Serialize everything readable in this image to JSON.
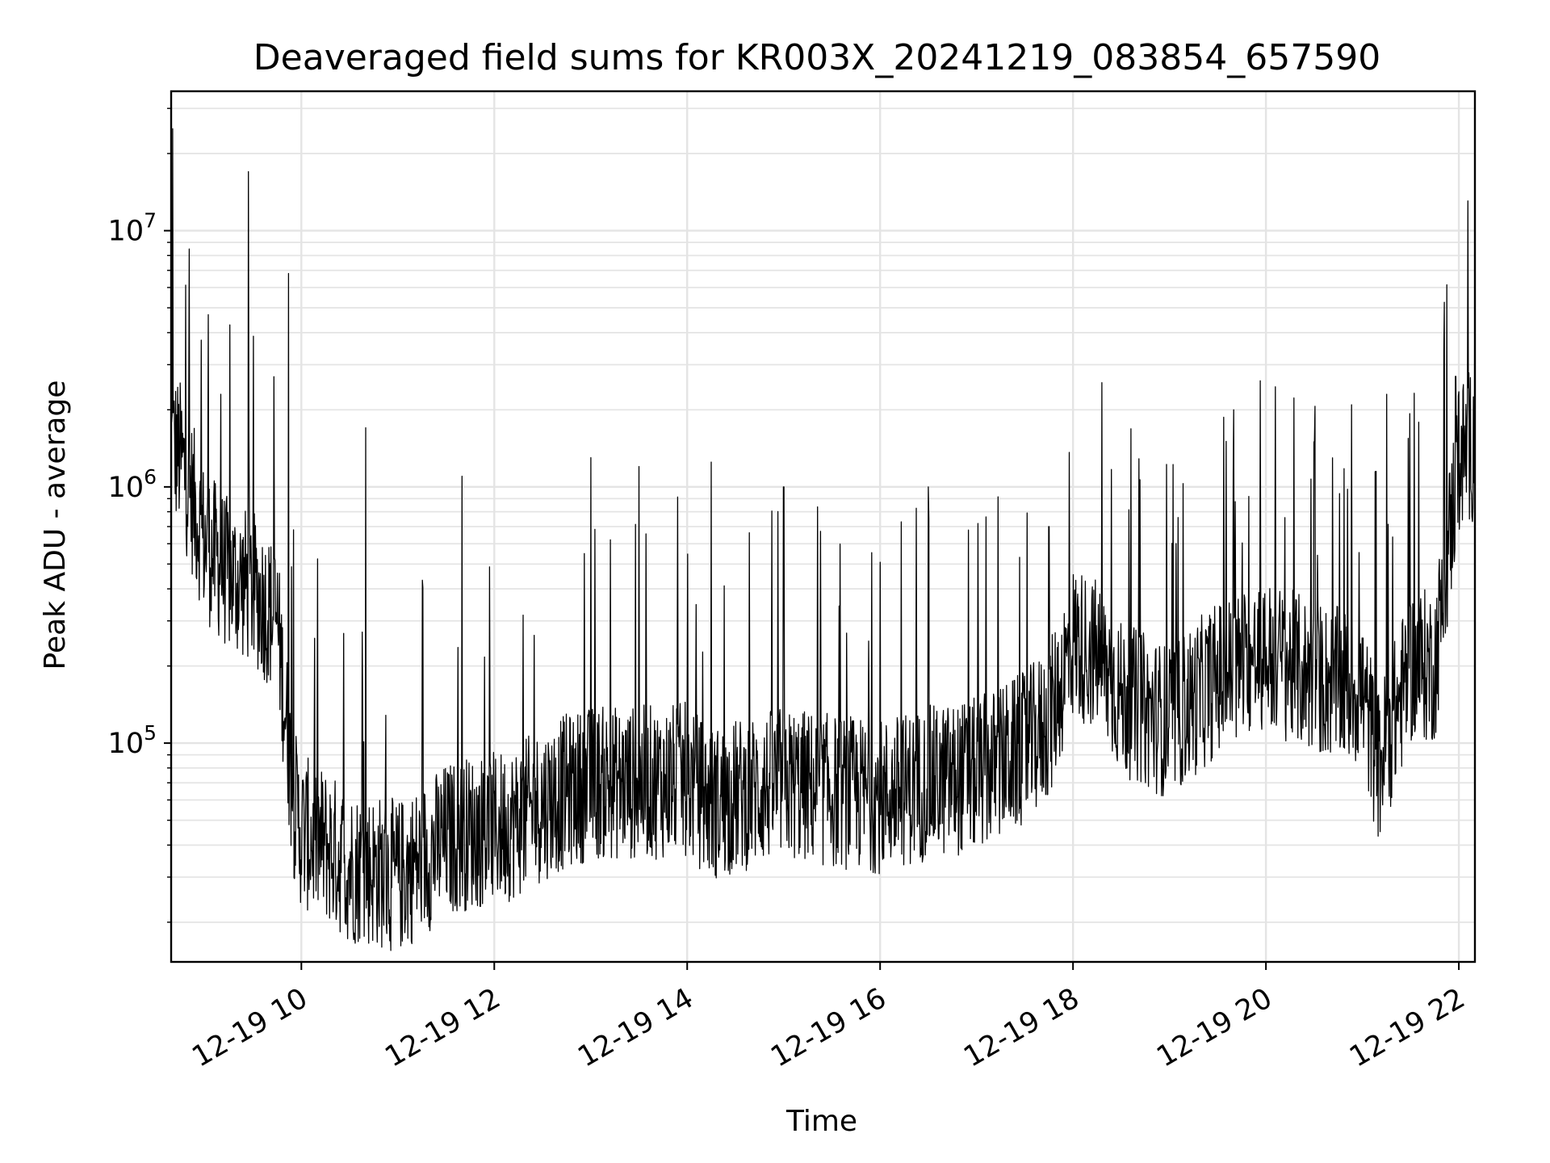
{
  "chart_data": {
    "type": "line",
    "title": "Deaveraged field sums for KR003X_20241219_083854_657590",
    "xlabel": "Time",
    "ylabel": "Peak ADU - average",
    "yscale": "log",
    "ylim": [
      14000,
      35000000
    ],
    "xlim": [
      "2024-12-19 08:39",
      "2024-12-19 22:10"
    ],
    "grid": true,
    "line_color": "#000000",
    "x_ticks": [
      {
        "value": "2024-12-19 10:00",
        "label": "12-19 10"
      },
      {
        "value": "2024-12-19 12:00",
        "label": "12-19 12"
      },
      {
        "value": "2024-12-19 14:00",
        "label": "12-19 14"
      },
      {
        "value": "2024-12-19 16:00",
        "label": "12-19 16"
      },
      {
        "value": "2024-12-19 18:00",
        "label": "12-19 18"
      },
      {
        "value": "2024-12-19 20:00",
        "label": "12-19 20"
      },
      {
        "value": "2024-12-19 22:00",
        "label": "12-19 22"
      }
    ],
    "y_ticks": [
      {
        "value": 100000,
        "base": "10",
        "exp": "5"
      },
      {
        "value": 1000000,
        "base": "10",
        "exp": "6"
      },
      {
        "value": 10000000,
        "base": "10",
        "exp": "7"
      }
    ],
    "x": [
      "08:39",
      "08:45",
      "09:00",
      "09:15",
      "09:30",
      "09:45",
      "09:55",
      "10:00",
      "10:15",
      "10:30",
      "10:45",
      "11:00",
      "11:15",
      "11:30",
      "11:45",
      "12:00",
      "12:15",
      "12:30",
      "12:45",
      "13:00",
      "13:30",
      "14:00",
      "14:15",
      "14:30",
      "15:00",
      "15:30",
      "16:00",
      "16:30",
      "17:00",
      "17:30",
      "17:45",
      "18:00",
      "18:15",
      "18:30",
      "19:00",
      "19:30",
      "20:00",
      "20:30",
      "21:00",
      "21:10",
      "21:30",
      "21:45",
      "22:00",
      "22:10"
    ],
    "y": [
      1500000,
      1300000,
      600000,
      450000,
      400000,
      300000,
      60000,
      45000,
      40000,
      33000,
      32000,
      30000,
      35000,
      42000,
      45000,
      46000,
      50000,
      58000,
      65000,
      70000,
      70000,
      72000,
      58000,
      62000,
      70000,
      65000,
      62000,
      70000,
      75000,
      95000,
      120000,
      250000,
      220000,
      150000,
      120000,
      180000,
      220000,
      180000,
      160000,
      80000,
      200000,
      200000,
      1300000,
      1500000
    ],
    "spikes": [
      {
        "x": "08:40",
        "y": 25000000
      },
      {
        "x": "09:02",
        "y": 4700000
      },
      {
        "x": "09:10",
        "y": 2300000
      },
      {
        "x": "09:27",
        "y": 17000000
      },
      {
        "x": "09:52",
        "y": 6800000
      },
      {
        "x": "10:40",
        "y": 1700000
      },
      {
        "x": "11:40",
        "y": 1100000
      },
      {
        "x": "13:00",
        "y": 1300000
      },
      {
        "x": "13:30",
        "y": 1200000
      },
      {
        "x": "14:15",
        "y": 1250000
      },
      {
        "x": "15:00",
        "y": 1000000
      },
      {
        "x": "16:30",
        "y": 1000000
      },
      {
        "x": "17:45",
        "y": 700000
      },
      {
        "x": "19:40",
        "y": 2000000
      },
      {
        "x": "20:30",
        "y": 1500000
      },
      {
        "x": "21:15",
        "y": 2300000
      },
      {
        "x": "21:58",
        "y": 2700000
      },
      {
        "x": "22:10",
        "y": 12000000
      }
    ]
  }
}
